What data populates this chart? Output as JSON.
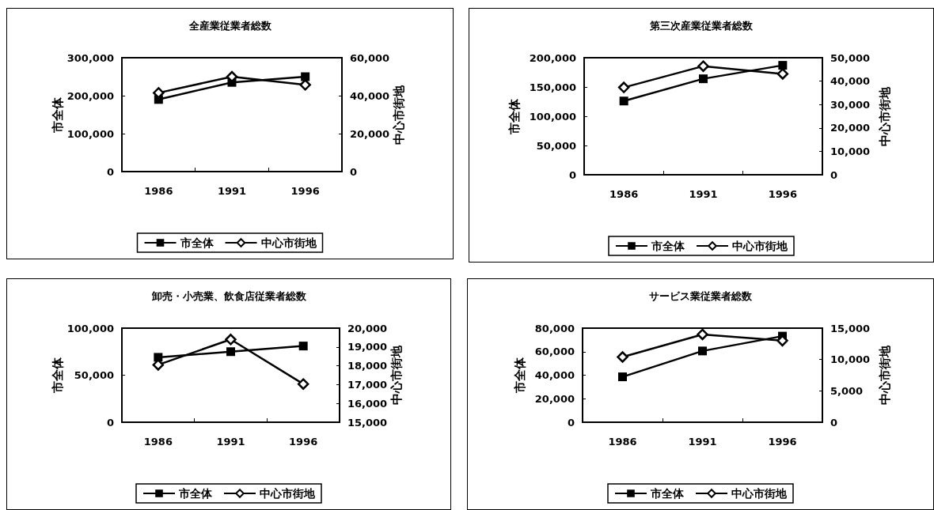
{
  "chart_data": [
    {
      "type": "line",
      "title": "全産業従業者総数",
      "categories": [
        "1986",
        "1991",
        "1996"
      ],
      "ylabel": "市全体",
      "y2label": "中心市街地",
      "ylim": [
        0,
        300000
      ],
      "yticks": [
        {
          "value": 0,
          "label": "0"
        },
        {
          "value": 100000,
          "label": "100,000"
        },
        {
          "value": 200000,
          "label": "200,000"
        },
        {
          "value": 300000,
          "label": "300,000"
        }
      ],
      "y2lim": [
        0,
        60000
      ],
      "y2ticks": [
        {
          "value": 0,
          "label": "0"
        },
        {
          "value": 20000,
          "label": "20,000"
        },
        {
          "value": 40000,
          "label": "40,000"
        },
        {
          "value": 60000,
          "label": "60,000"
        }
      ],
      "legend": "bottom",
      "grid": false,
      "line_style": "solid",
      "series": [
        {
          "name": "市全体",
          "color": "#000000",
          "marker": "square",
          "values": [
            190000,
            235000,
            250000
          ]
        },
        {
          "name": "中心市街地",
          "color": "#000000",
          "marker": "diamond",
          "axis": "y2",
          "values": [
            41500,
            50000,
            45700
          ]
        }
      ]
    },
    {
      "type": "line",
      "title": "第三次産業従業者総数",
      "categories": [
        "1986",
        "1991",
        "1996"
      ],
      "ylabel": "市全体",
      "y2label": "中心市街地",
      "ylim": [
        0,
        200000
      ],
      "yticks": [
        {
          "value": 0,
          "label": "0"
        },
        {
          "value": 50000,
          "label": "50,000"
        },
        {
          "value": 100000,
          "label": "100,000"
        },
        {
          "value": 150000,
          "label": "150,000"
        },
        {
          "value": 200000,
          "label": "200,000"
        }
      ],
      "y2lim": [
        0,
        50000
      ],
      "y2ticks": [
        {
          "value": 0,
          "label": "0"
        },
        {
          "value": 10000,
          "label": "10,000"
        },
        {
          "value": 20000,
          "label": "20,000"
        },
        {
          "value": 30000,
          "label": "30,000"
        },
        {
          "value": 40000,
          "label": "40,000"
        },
        {
          "value": 50000,
          "label": "50,000"
        }
      ],
      "legend": "bottom",
      "grid": false,
      "line_style": "solid",
      "series": [
        {
          "name": "市全体",
          "color": "#000000",
          "marker": "square",
          "values": [
            126000,
            164000,
            187000
          ]
        },
        {
          "name": "中心市街地",
          "color": "#000000",
          "marker": "diamond",
          "axis": "y2",
          "values": [
            37300,
            46400,
            43100
          ]
        }
      ]
    },
    {
      "type": "line",
      "title": "卸売・小売業、飲食店従業者総数",
      "categories": [
        "1986",
        "1991",
        "1996"
      ],
      "ylabel": "市全体",
      "y2label": "中心市街地",
      "ylim": [
        0,
        100000
      ],
      "yticks": [
        {
          "value": 0,
          "label": "0"
        },
        {
          "value": 50000,
          "label": "50,000"
        },
        {
          "value": 100000,
          "label": "100,000"
        }
      ],
      "y2lim": [
        15000,
        20000
      ],
      "y2ticks": [
        {
          "value": 15000,
          "label": "15,000"
        },
        {
          "value": 16000,
          "label": "16,000"
        },
        {
          "value": 17000,
          "label": "17,000"
        },
        {
          "value": 18000,
          "label": "18,000"
        },
        {
          "value": 19000,
          "label": "19,000"
        },
        {
          "value": 20000,
          "label": "20,000"
        }
      ],
      "legend": "bottom",
      "grid": false,
      "line_style": "solid",
      "series": [
        {
          "name": "市全体",
          "color": "#000000",
          "marker": "square",
          "values": [
            69000,
            75000,
            81000
          ]
        },
        {
          "name": "中心市街地",
          "color": "#000000",
          "marker": "diamond",
          "axis": "y2",
          "values": [
            18050,
            19400,
            17030
          ]
        }
      ]
    },
    {
      "type": "line",
      "title": "サービス業従業者総数",
      "categories": [
        "1986",
        "1991",
        "1996"
      ],
      "ylabel": "市全体",
      "y2label": "中心市街地",
      "ylim": [
        0,
        80000
      ],
      "yticks": [
        {
          "value": 0,
          "label": "0"
        },
        {
          "value": 20000,
          "label": "20,000"
        },
        {
          "value": 40000,
          "label": "40,000"
        },
        {
          "value": 60000,
          "label": "60,000"
        },
        {
          "value": 80000,
          "label": "80,000"
        }
      ],
      "y2lim": [
        0,
        15000
      ],
      "y2ticks": [
        {
          "value": 0,
          "label": "0"
        },
        {
          "value": 5000,
          "label": "5,000"
        },
        {
          "value": 10000,
          "label": "10,000"
        },
        {
          "value": 15000,
          "label": "15,000"
        }
      ],
      "legend": "bottom",
      "grid": false,
      "line_style": "solid",
      "series": [
        {
          "name": "市全体",
          "color": "#000000",
          "marker": "square",
          "values": [
            38600,
            60600,
            73200
          ]
        },
        {
          "name": "中心市街地",
          "color": "#000000",
          "marker": "diamond",
          "axis": "y2",
          "values": [
            10400,
            14000,
            13000
          ]
        }
      ]
    }
  ]
}
